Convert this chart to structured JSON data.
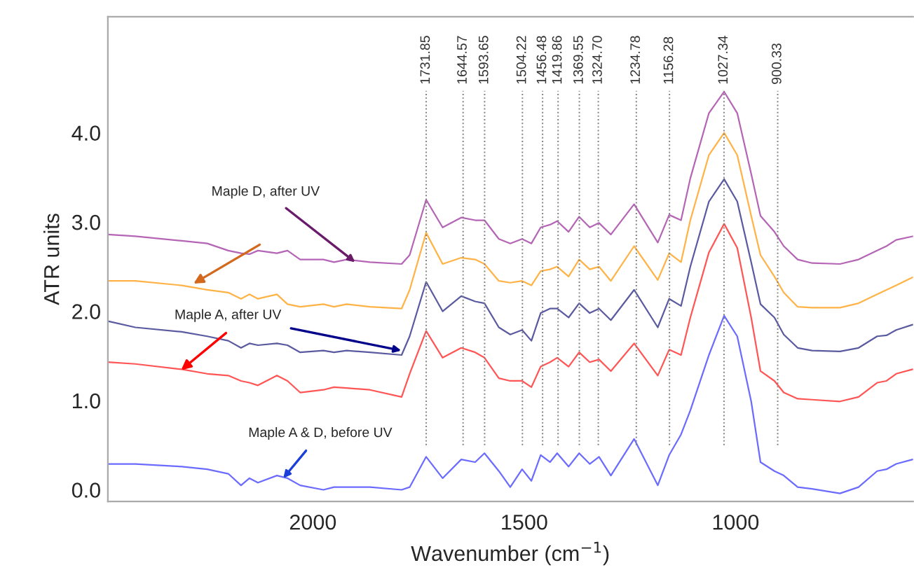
{
  "chart_data": {
    "type": "line",
    "xlabel": "Wavenumber (cm$^{−1}$)",
    "ylabel": "ATR units",
    "x": [
      2485,
      2420,
      2310,
      2250,
      2200,
      2170,
      2150,
      2130,
      2085,
      2060,
      2030,
      1975,
      1950,
      1920,
      1865,
      1790,
      1771,
      1732,
      1693,
      1649,
      1616,
      1594,
      1560,
      1533,
      1505,
      1483,
      1461,
      1439,
      1422,
      1395,
      1370,
      1345,
      1323,
      1295,
      1240,
      1184,
      1157,
      1129,
      1107,
      1063,
      1027,
      996,
      963,
      941,
      908,
      886,
      853,
      819,
      753,
      709,
      665,
      643,
      620,
      581
    ],
    "series": [
      {
        "color": "#b565b5",
        "values": [
          2.86,
          2.84,
          2.79,
          2.76,
          2.68,
          2.65,
          2.64,
          2.68,
          2.65,
          2.68,
          2.58,
          2.58,
          2.55,
          2.58,
          2.55,
          2.53,
          2.63,
          3.25,
          2.94,
          3.05,
          3.02,
          3.02,
          2.81,
          2.76,
          2.81,
          2.76,
          2.94,
          2.97,
          3.01,
          2.89,
          3.06,
          2.94,
          2.99,
          2.86,
          3.2,
          2.77,
          3.08,
          3.02,
          3.49,
          4.22,
          4.46,
          4.22,
          3.54,
          3.07,
          2.89,
          2.73,
          2.58,
          2.54,
          2.53,
          2.58,
          2.68,
          2.73,
          2.8,
          2.84
        ]
      },
      {
        "color": "#ffb347",
        "values": [
          2.34,
          2.34,
          2.29,
          2.24,
          2.21,
          2.14,
          2.19,
          2.14,
          2.19,
          2.08,
          2.05,
          2.08,
          2.05,
          2.08,
          2.05,
          2.03,
          2.24,
          2.88,
          2.53,
          2.6,
          2.58,
          2.53,
          2.34,
          2.32,
          2.34,
          2.29,
          2.45,
          2.47,
          2.5,
          2.39,
          2.58,
          2.47,
          2.5,
          2.34,
          2.73,
          2.35,
          2.65,
          2.55,
          3.02,
          3.75,
          4.0,
          3.75,
          3.07,
          2.63,
          2.39,
          2.21,
          2.05,
          2.04,
          2.04,
          2.09,
          2.19,
          2.24,
          2.29,
          2.38
        ]
      },
      {
        "color": "#5a5aa0",
        "values": [
          1.89,
          1.82,
          1.77,
          1.72,
          1.67,
          1.59,
          1.64,
          1.62,
          1.64,
          1.62,
          1.54,
          1.56,
          1.54,
          1.56,
          1.54,
          1.51,
          1.72,
          2.33,
          2.0,
          2.17,
          2.11,
          2.09,
          1.82,
          1.74,
          1.79,
          1.67,
          1.98,
          2.03,
          2.03,
          1.93,
          2.09,
          1.98,
          2.03,
          1.9,
          2.24,
          1.82,
          2.14,
          2.06,
          2.5,
          3.23,
          3.48,
          3.23,
          2.55,
          2.08,
          1.93,
          1.74,
          1.59,
          1.56,
          1.55,
          1.59,
          1.72,
          1.73,
          1.79,
          1.85
        ]
      },
      {
        "color": "#ff5555",
        "values": [
          1.43,
          1.41,
          1.35,
          1.3,
          1.28,
          1.22,
          1.2,
          1.17,
          1.28,
          1.22,
          1.09,
          1.12,
          1.15,
          1.14,
          1.12,
          1.04,
          1.3,
          1.78,
          1.48,
          1.59,
          1.54,
          1.48,
          1.25,
          1.22,
          1.22,
          1.15,
          1.38,
          1.43,
          1.48,
          1.38,
          1.54,
          1.43,
          1.46,
          1.33,
          1.64,
          1.28,
          1.57,
          1.51,
          1.93,
          2.66,
          2.98,
          2.71,
          1.93,
          1.33,
          1.22,
          1.09,
          1.02,
          1.01,
          0.99,
          1.04,
          1.2,
          1.22,
          1.3,
          1.35
        ]
      },
      {
        "color": "#6b6bff",
        "values": [
          0.29,
          0.29,
          0.26,
          0.23,
          0.18,
          0.05,
          0.13,
          0.08,
          0.16,
          0.13,
          0.05,
          0.0,
          0.03,
          0.03,
          0.03,
          0.0,
          0.03,
          0.37,
          0.13,
          0.34,
          0.31,
          0.41,
          0.21,
          0.03,
          0.23,
          0.1,
          0.39,
          0.31,
          0.41,
          0.26,
          0.41,
          0.29,
          0.37,
          0.16,
          0.57,
          0.05,
          0.39,
          0.62,
          0.89,
          1.51,
          1.95,
          1.72,
          0.99,
          0.31,
          0.21,
          0.16,
          0.03,
          0.01,
          -0.04,
          0.03,
          0.21,
          0.23,
          0.29,
          0.34
        ]
      }
    ],
    "xlim": [
      2485,
      580
    ],
    "xticks": [
      2000,
      1500,
      1000
    ],
    "ylim": [
      -0.13,
      5.3
    ],
    "yticks": [
      {
        "value": 0,
        "label": "0.0"
      },
      {
        "value": 1,
        "label": "1.0"
      },
      {
        "value": 2,
        "label": "2.0"
      },
      {
        "value": 3,
        "label": "3.0"
      },
      {
        "value": 4,
        "label": "4.0"
      }
    ],
    "ref_lines": [
      {
        "axis": "x",
        "value": 1731.85,
        "label": "1731.85",
        "line_style": "dotted",
        "color": "#808080"
      },
      {
        "axis": "x",
        "value": 1644.57,
        "label": "1644.57",
        "line_style": "dotted",
        "color": "#808080"
      },
      {
        "axis": "x",
        "value": 1593.65,
        "label": "1593.65",
        "line_style": "dotted",
        "color": "#808080"
      },
      {
        "axis": "x",
        "value": 1504.22,
        "label": "1504.22",
        "line_style": "dotted",
        "color": "#808080"
      },
      {
        "axis": "x",
        "value": 1456.48,
        "label": "1456.48",
        "line_style": "dotted",
        "color": "#808080"
      },
      {
        "axis": "x",
        "value": 1419.86,
        "label": "1419.86",
        "line_style": "dotted",
        "color": "#808080"
      },
      {
        "axis": "x",
        "value": 1369.55,
        "label": "1369.55",
        "line_style": "dotted",
        "color": "#808080"
      },
      {
        "axis": "x",
        "value": 1324.7,
        "label": "1324.70",
        "line_style": "dotted",
        "color": "#808080"
      },
      {
        "axis": "x",
        "value": 1234.78,
        "label": "1234.78",
        "line_style": "dotted",
        "color": "#808080"
      },
      {
        "axis": "x",
        "value": 1156.28,
        "label": "1156.28",
        "line_style": "dotted",
        "color": "#808080"
      },
      {
        "axis": "x",
        "value": 1027.34,
        "label": "1027.34",
        "line_style": "dotted",
        "color": "#808080"
      },
      {
        "axis": "x",
        "value": 900.33,
        "label": "900.33",
        "line_style": "dotted",
        "color": "#808080"
      }
    ],
    "annotations": [
      {
        "text": "Maple D, after UV",
        "x": 1900,
        "y": 2.55
      },
      {
        "text": "Maple A, after UV",
        "x": 1791,
        "y": 1.56
      },
      {
        "text": "Maple A & D, before UV",
        "x": 2070,
        "y": 0.13
      }
    ],
    "grid": false,
    "legend": false,
    "line_style": "solid",
    "marker": "none"
  }
}
